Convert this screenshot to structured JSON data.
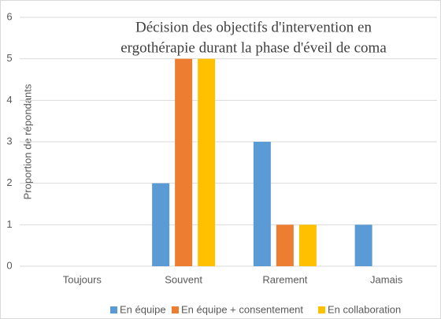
{
  "chart_data": {
    "type": "bar",
    "title": [
      "Décision des objectifs d'intervention en",
      "ergothérapie durant la phase d'éveil de coma"
    ],
    "y_label": "Proportion  de répondants",
    "categories": [
      "Toujours",
      "Souvent",
      "Rarement",
      "Jamais"
    ],
    "series": [
      {
        "name": "En équipe",
        "color": "#5b9bd5",
        "values": [
          0,
          2,
          3,
          1
        ]
      },
      {
        "name": "En équipe + consentement",
        "color": "#ed7d31",
        "values": [
          0,
          5,
          1,
          0
        ]
      },
      {
        "name": "En collaboration",
        "color": "#ffc000",
        "values": [
          0,
          5,
          1,
          0
        ]
      }
    ],
    "ylim": [
      0,
      6
    ],
    "yticks": [
      0,
      1,
      2,
      3,
      4,
      5,
      6
    ],
    "grid": true,
    "legend": "bottom"
  }
}
